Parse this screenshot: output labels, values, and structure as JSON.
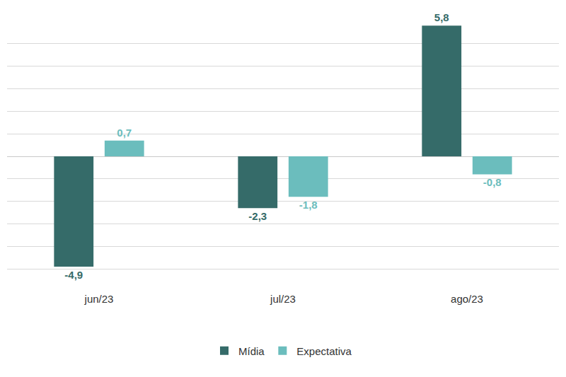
{
  "chart_data": {
    "type": "bar",
    "categories": [
      "jun/23",
      "jul/23",
      "ago/23"
    ],
    "series": [
      {
        "name": "Mídia",
        "color": "#356b69",
        "values": [
          -4.9,
          -2.3,
          5.8
        ],
        "value_labels": [
          "-4,9",
          "-2,3",
          "5,8"
        ]
      },
      {
        "name": "Expectativa",
        "color": "#6bbdbd",
        "values": [
          0.7,
          -1.8,
          -0.8
        ],
        "value_labels": [
          "0,7",
          "-1,8",
          "-0,8"
        ]
      }
    ],
    "ylim": [
      -6,
      6
    ],
    "yticks": [
      -6,
      -5,
      -4,
      -3,
      -2,
      -1,
      0,
      1,
      2,
      3,
      4,
      5,
      6
    ],
    "grid": true,
    "tick_labels": "x",
    "data_labels": true,
    "legend": "bottom"
  }
}
